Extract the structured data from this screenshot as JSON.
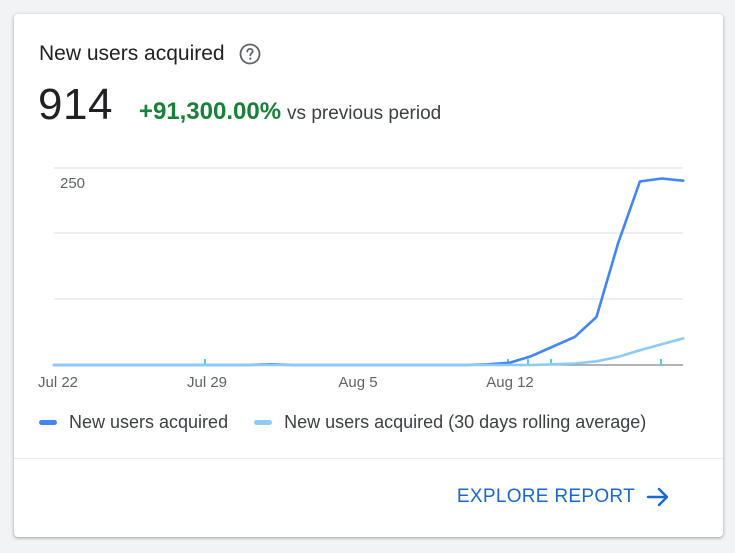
{
  "card": {
    "title": "New users acquired",
    "metric": {
      "value": "914",
      "change": "+91,300.00%",
      "compare_label": "vs previous period"
    },
    "explore_label": "EXPLORE REPORT"
  },
  "icons": {
    "help": "help-circle-icon",
    "explore": "arrow-right-icon"
  },
  "colors": {
    "primary_series": "#4285f4",
    "secondary_series": "#8ecaf5",
    "positive_change": "#188038",
    "link": "#1967d2"
  },
  "chart_data": {
    "type": "line",
    "x_labels": [
      "Jul 22",
      "Jul 29",
      "Aug 5",
      "Aug 12"
    ],
    "ylim": [
      0,
      250
    ],
    "y_ticks": [
      250
    ],
    "grid": true,
    "legend_position": "bottom-left",
    "x": [
      "Jul 22",
      "Jul 23",
      "Jul 24",
      "Jul 25",
      "Jul 26",
      "Jul 27",
      "Jul 28",
      "Jul 29",
      "Jul 30",
      "Jul 31",
      "Aug 1",
      "Aug 2",
      "Aug 3",
      "Aug 4",
      "Aug 5",
      "Aug 6",
      "Aug 7",
      "Aug 8",
      "Aug 9",
      "Aug 10",
      "Aug 11",
      "Aug 12",
      "Aug 13",
      "Aug 14",
      "Aug 15",
      "Aug 16",
      "Aug 17",
      "Aug 18",
      "Aug 19",
      "Aug 20"
    ],
    "series": [
      {
        "name": "New users acquired",
        "values": [
          0,
          0,
          0,
          0,
          0,
          0,
          0,
          0,
          0,
          0,
          1,
          0,
          0,
          0,
          0,
          0,
          0,
          0,
          0,
          0,
          1,
          3,
          12,
          25,
          38,
          65,
          165,
          248,
          252,
          249
        ]
      },
      {
        "name": "New users acquired (30 days rolling average)",
        "values": [
          0,
          0,
          0,
          0,
          0,
          0,
          0,
          0,
          0,
          0,
          0,
          0,
          0,
          0,
          0,
          0,
          0,
          0,
          0,
          0,
          0,
          0,
          0,
          1,
          2,
          5,
          11,
          20,
          28,
          36
        ]
      }
    ]
  }
}
